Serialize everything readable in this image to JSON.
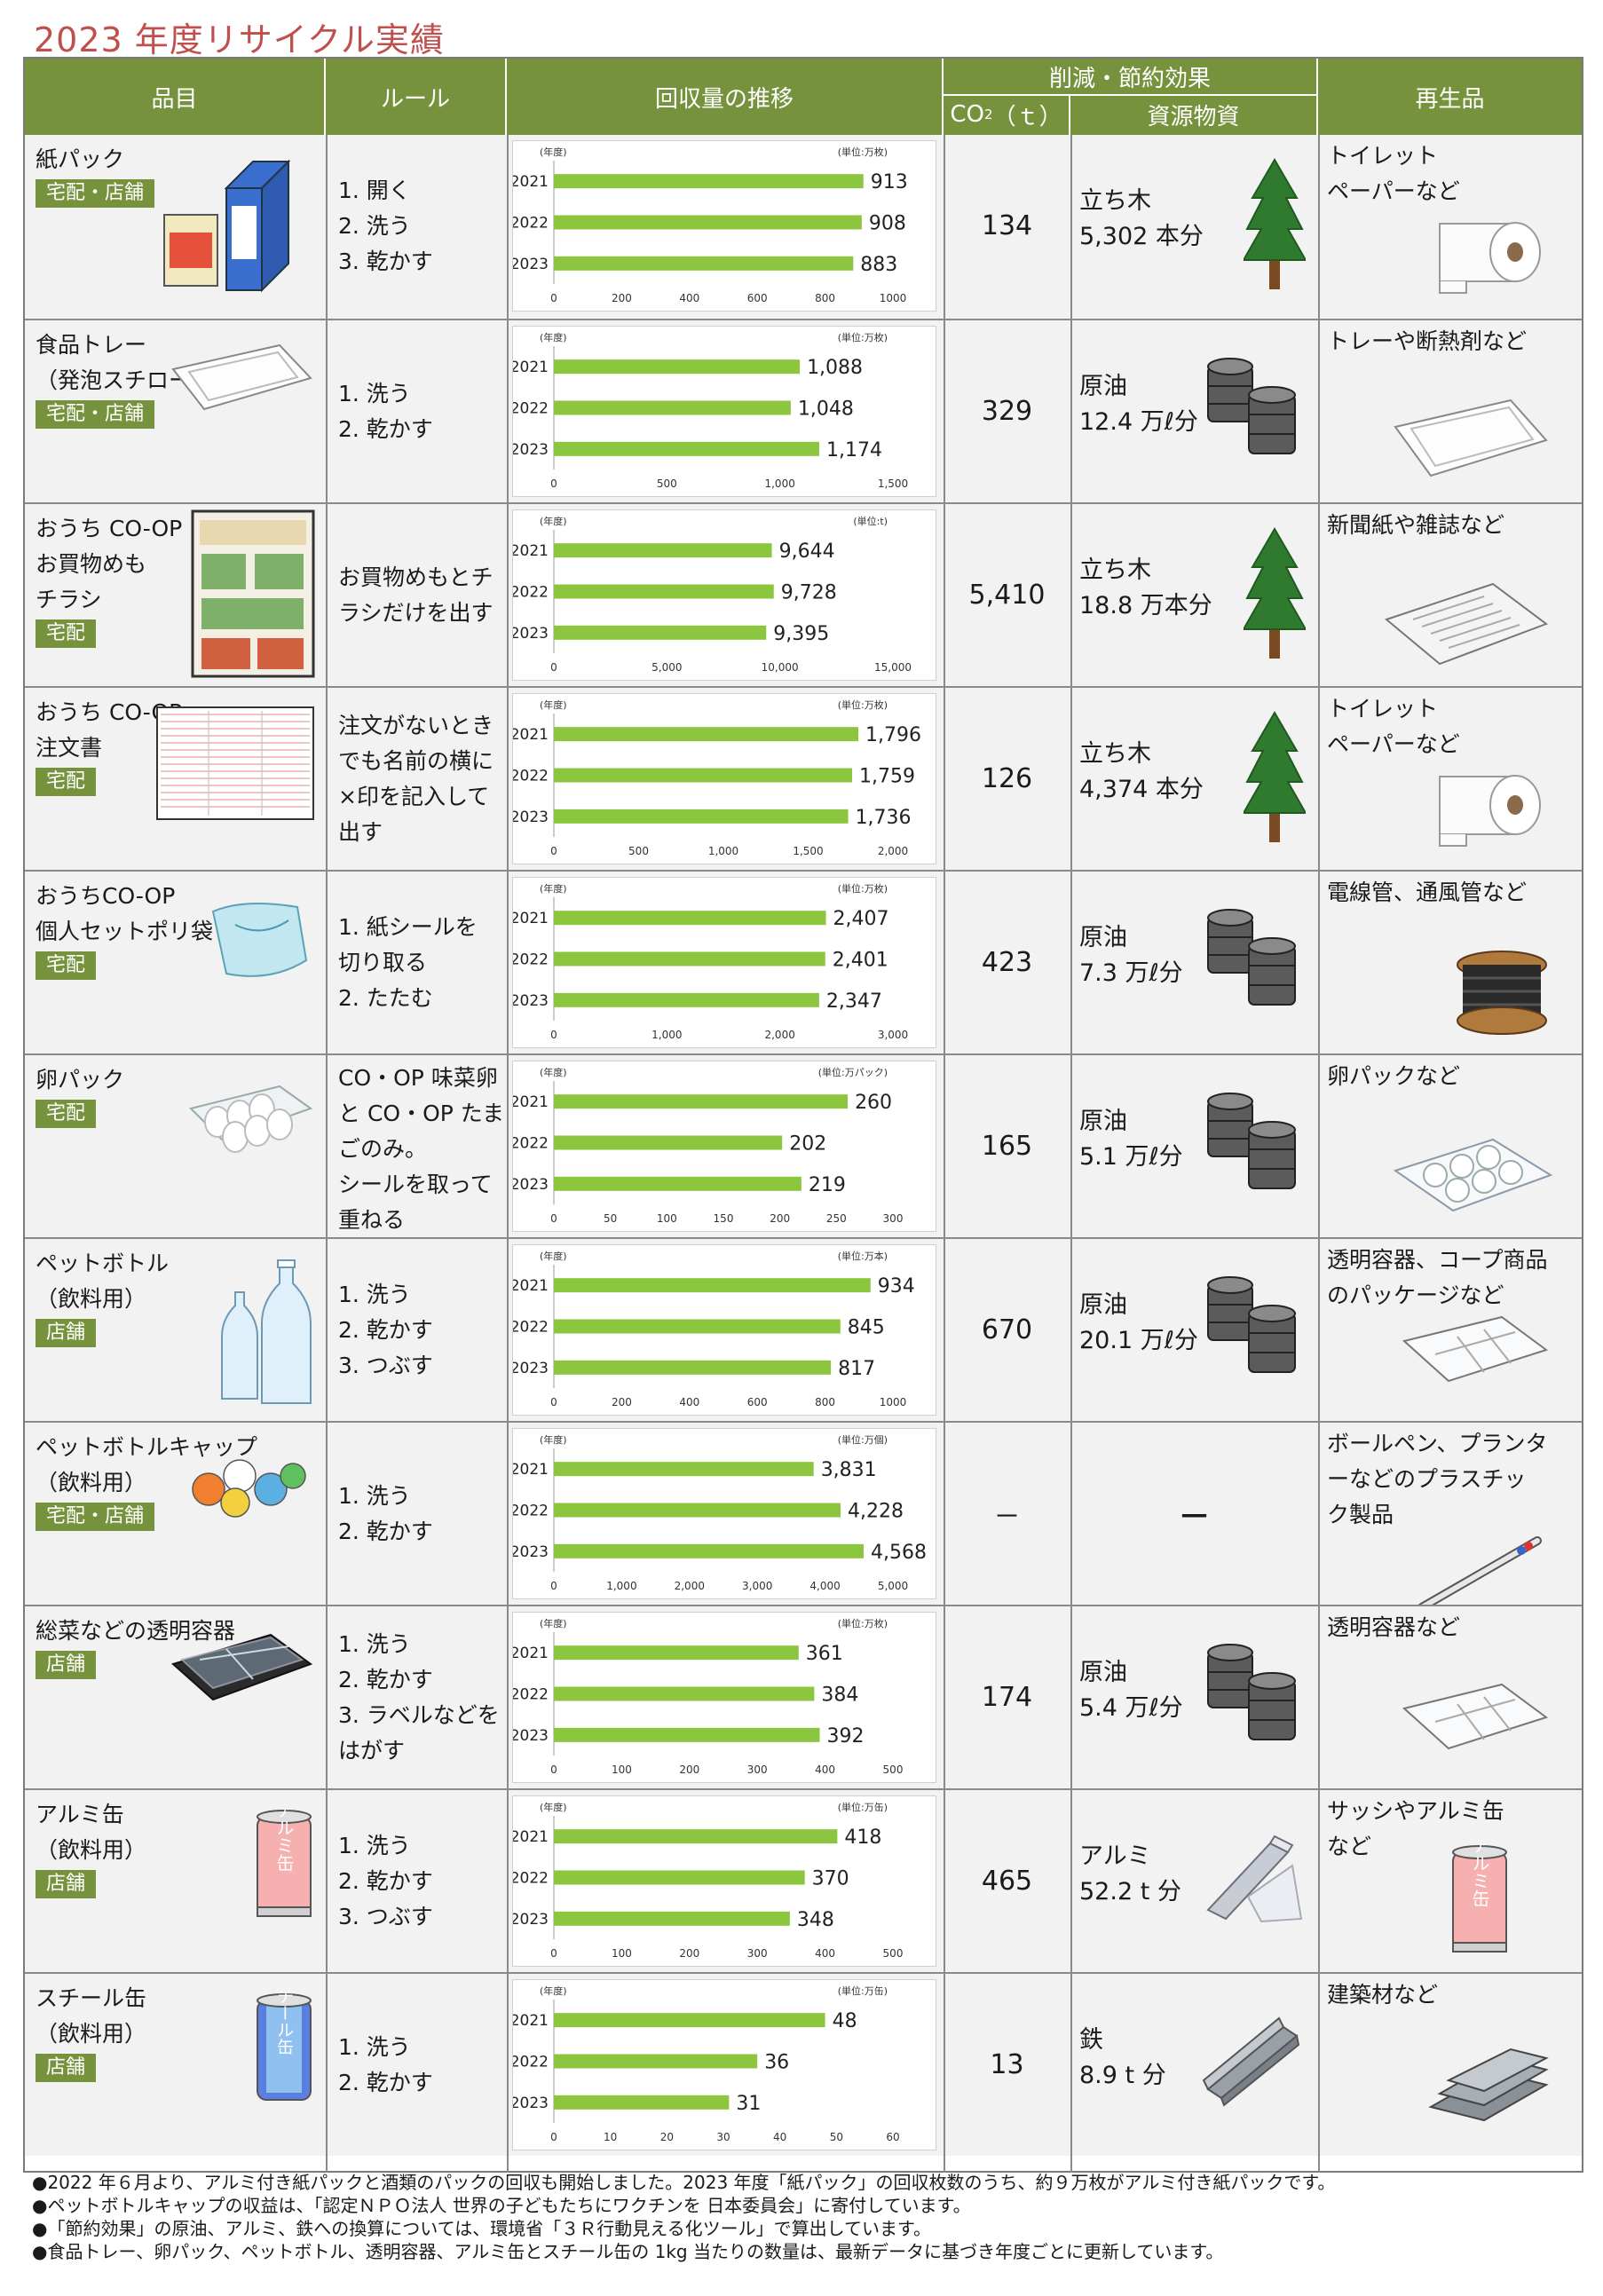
{
  "title": "2023 年度リサイクル実績",
  "header": {
    "item": "品目",
    "rule": "ルール",
    "trend": "回収量の推移",
    "effect": "削減・節約効果",
    "co2_base": "CO",
    "co2_sup": "2",
    "co2_unit": "（ｔ）",
    "resource": "資源物資",
    "product": "再生品"
  },
  "rows": [
    {
      "item": "紙パック",
      "badge": "宅配・店舗",
      "rules": "1.  開く\n2.  洗う\n3.  乾かす",
      "chart": {
        "unit": "(単位:万枚)",
        "years": [
          "2021",
          "2022",
          "2023"
        ],
        "values": [
          913,
          908,
          883
        ],
        "labels": [
          "913",
          "908",
          "883"
        ],
        "max": 1000,
        "ticks": [
          "0",
          "200",
          "400",
          "600",
          "800",
          "1000"
        ]
      },
      "co2": "134",
      "resource": "立ち木\n5,302 本分",
      "resource_icon": "tree-icon",
      "product": "トイレット\nペーパーなど",
      "product_icon": "toilet-paper-icon",
      "item_icon": "milk-carton-icon"
    },
    {
      "item": "食品トレー\n（発泡スチロール製）",
      "badge": "宅配・店舗",
      "rules": "1.  洗う\n2.  乾かす",
      "chart": {
        "unit": "(単位:万枚)",
        "years": [
          "2021",
          "2022",
          "2023"
        ],
        "values": [
          1088,
          1048,
          1174
        ],
        "labels": [
          "1,088",
          "1,048",
          "1,174"
        ],
        "max": 1500,
        "ticks": [
          "0",
          "500",
          "1,000",
          "1,500"
        ]
      },
      "co2": "329",
      "resource": "原油\n12.4 万ℓ分",
      "resource_icon": "oil-drum-icon",
      "product": "トレーや断熱剤など",
      "product_icon": "tray-icon",
      "item_icon": "foam-tray-icon"
    },
    {
      "item": "おうち CO-OP\nお買物めも\nチラシ",
      "badge": "宅配",
      "rules": "お買物めもとチ\nラシだけを出す",
      "chart": {
        "unit": "(単位:t)",
        "years": [
          "2021",
          "2022",
          "2023"
        ],
        "values": [
          9644,
          9728,
          9395
        ],
        "labels": [
          "9,644",
          "9,728",
          "9,395"
        ],
        "max": 15000,
        "ticks": [
          "0",
          "5,000",
          "10,000",
          "15,000"
        ]
      },
      "co2": "5,410",
      "resource": "立ち木\n18.8 万本分",
      "resource_icon": "tree-icon",
      "product": "新聞紙や雑誌など",
      "product_icon": "newspaper-icon",
      "item_icon": "flyer-icon"
    },
    {
      "item": "おうち CO-OP\n注文書",
      "badge": "宅配",
      "rules": "注文がないとき\nでも名前の横に\n×印を記入して\n出す",
      "chart": {
        "unit": "(単位:万枚)",
        "years": [
          "2021",
          "2022",
          "2023"
        ],
        "values": [
          1796,
          1759,
          1736
        ],
        "labels": [
          "1,796",
          "1,759",
          "1,736"
        ],
        "max": 2000,
        "ticks": [
          "0",
          "500",
          "1,000",
          "1,500",
          "2,000"
        ]
      },
      "co2": "126",
      "resource": "立ち木\n4,374 本分",
      "resource_icon": "tree-icon",
      "product": "トイレット\nペーパーなど",
      "product_icon": "toilet-paper-icon",
      "item_icon": "order-form-icon"
    },
    {
      "item": "おうちCO-OP\n個人セットポリ袋",
      "badge": "宅配",
      "rules": "1.  紙シールを\n     切り取る\n2.  たたむ",
      "chart": {
        "unit": "(単位:万枚)",
        "years": [
          "2021",
          "2022",
          "2023"
        ],
        "values": [
          2407,
          2401,
          2347
        ],
        "labels": [
          "2,407",
          "2,401",
          "2,347"
        ],
        "max": 3000,
        "ticks": [
          "0",
          "1,000",
          "2,000",
          "3,000"
        ]
      },
      "co2": "423",
      "resource": "原油\n7.3 万ℓ分",
      "resource_icon": "oil-drum-icon",
      "product": "電線管、通風管など",
      "product_icon": "cable-reel-icon",
      "item_icon": "poly-bag-icon"
    },
    {
      "item": "卵パック",
      "badge": "宅配",
      "rules": "CO・OP 味菜卵\nと CO・OP たま\nごのみ。\nシールを取って\n重ねる",
      "chart": {
        "unit": "(単位:万パック)",
        "years": [
          "2021",
          "2022",
          "2023"
        ],
        "values": [
          260,
          202,
          219
        ],
        "labels": [
          "260",
          "202",
          "219"
        ],
        "max": 300,
        "ticks": [
          "0",
          "50",
          "100",
          "150",
          "200",
          "250",
          "300"
        ]
      },
      "co2": "165",
      "resource": "原油\n5.1 万ℓ分",
      "resource_icon": "oil-drum-icon",
      "product": "卵パックなど",
      "product_icon": "egg-pack-icon",
      "item_icon": "egg-carton-icon"
    },
    {
      "item": "ペットボトル\n（飲料用）",
      "badge": "店舗",
      "rules": "1.  洗う\n2.  乾かす\n3.  つぶす",
      "chart": {
        "unit": "(単位:万本)",
        "years": [
          "2021",
          "2022",
          "2023"
        ],
        "values": [
          934,
          845,
          817
        ],
        "labels": [
          "934",
          "845",
          "817"
        ],
        "max": 1000,
        "ticks": [
          "0",
          "200",
          "400",
          "600",
          "800",
          "1000"
        ]
      },
      "co2": "670",
      "resource": "原油\n20.1 万ℓ分",
      "resource_icon": "oil-drum-icon",
      "product": "透明容器、コープ商品\nのパッケージなど",
      "product_icon": "clear-container-icon",
      "item_icon": "pet-bottle-icon"
    },
    {
      "item": "ペットボトルキャップ\n（飲料用）",
      "badge": "宅配・店舗",
      "rules": "1.  洗う\n2.  乾かす",
      "chart": {
        "unit": "(単位:万個)",
        "years": [
          "2021",
          "2022",
          "2023"
        ],
        "values": [
          3831,
          4228,
          4568
        ],
        "labels": [
          "3,831",
          "4,228",
          "4,568"
        ],
        "max": 5000,
        "ticks": [
          "0",
          "1,000",
          "2,000",
          "3,000",
          "4,000",
          "5,000"
        ]
      },
      "co2": "－",
      "resource": "－",
      "resource_icon": "",
      "product": "ボールペン、プランタ\nーなどのプラスチッ\nク製品",
      "product_icon": "ballpoint-pen-icon",
      "item_icon": "bottle-caps-icon"
    },
    {
      "item": "総菜などの透明容器",
      "badge": "店舗",
      "rules": "1.  洗う\n2.  乾かす\n3.  ラベルなどを\n     はがす",
      "chart": {
        "unit": "(単位:万枚)",
        "years": [
          "2021",
          "2022",
          "2023"
        ],
        "values": [
          361,
          384,
          392
        ],
        "labels": [
          "361",
          "384",
          "392"
        ],
        "max": 500,
        "ticks": [
          "0",
          "100",
          "200",
          "300",
          "400",
          "500"
        ]
      },
      "co2": "174",
      "resource": "原油\n5.4 万ℓ分",
      "resource_icon": "oil-drum-icon",
      "product": "透明容器など",
      "product_icon": "clear-container-icon",
      "item_icon": "deli-container-icon"
    },
    {
      "item": "アルミ缶\n（飲料用）",
      "badge": "店舗",
      "rules": "1.  洗う\n2.  乾かす\n3.  つぶす",
      "chart": {
        "unit": "(単位:万缶)",
        "years": [
          "2021",
          "2022",
          "2023"
        ],
        "values": [
          418,
          370,
          348
        ],
        "labels": [
          "418",
          "370",
          "348"
        ],
        "max": 500,
        "ticks": [
          "0",
          "100",
          "200",
          "300",
          "400",
          "500"
        ]
      },
      "co2": "465",
      "resource": "アルミ\n52.2 t 分",
      "resource_icon": "aluminum-bar-icon",
      "product": "サッシやアルミ缶\nなど",
      "product_icon": "aluminum-can-icon",
      "item_icon": "aluminum-can-icon"
    },
    {
      "item": "スチール缶\n（飲料用）",
      "badge": "店舗",
      "rules": "1.  洗う\n2.  乾かす",
      "chart": {
        "unit": "(単位:万缶)",
        "years": [
          "2021",
          "2022",
          "2023"
        ],
        "values": [
          48,
          36,
          31
        ],
        "labels": [
          "48",
          "36",
          "31"
        ],
        "max": 60,
        "ticks": [
          "0",
          "10",
          "20",
          "30",
          "40",
          "50",
          "60"
        ]
      },
      "co2": "13",
      "resource": "鉄\n8.9 t 分",
      "resource_icon": "steel-beam-icon",
      "product": "建築材など",
      "product_icon": "steel-beams-icon",
      "item_icon": "steel-can-icon"
    }
  ],
  "can_labels": {
    "alu": "アルミ缶",
    "steel": "スチール缶"
  },
  "chart_year_label": "(年度)",
  "notes": [
    "●2022 年６月より、アルミ付き紙パックと酒類のパックの回収も開始しました。2023 年度「紙パック」の回収枚数のうち、約９万枚がアルミ付き紙パックです。",
    "●ペットボトルキャップの収益は、「認定ＮＰＯ法人 世界の子どもたちにワクチンを 日本委員会」に寄付しています。",
    "●「節約効果」の原油、アルミ、鉄への換算については、環境省「３Ｒ行動見える化ツール」で算出しています。",
    "●食品トレー、卵パック、ペットボトル、透明容器、アルミ缶とスチール缶の 1kg 当たりの数量は、最新データに基づき年度ごとに更新しています。"
  ],
  "colors": {
    "header": "#76923c",
    "bar": "#8cc63e",
    "title": "#c0504d",
    "row_bg": "#f2f2f2"
  }
}
